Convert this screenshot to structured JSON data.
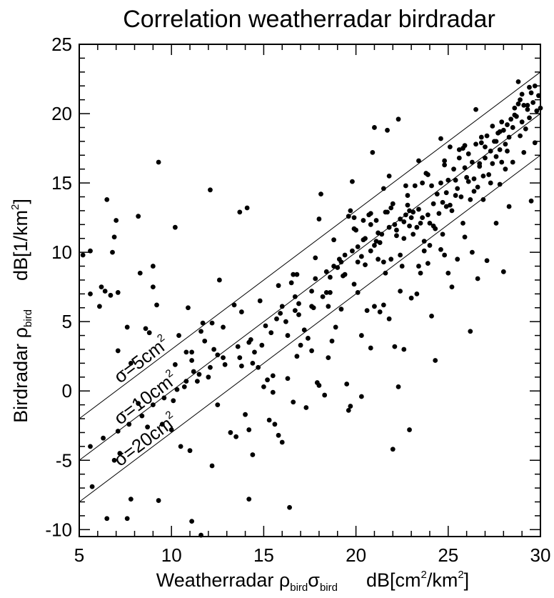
{
  "chart_data": {
    "type": "scatter",
    "title": "Correlation weatherradar birdradar",
    "xlabel": {
      "prefix": "Weatherradar ",
      "symbol1": "ρ",
      "sub1": "bird",
      "symbol2": "σ",
      "sub2": "bird",
      "unit_prefix": "dB[cm",
      "sup1": "2",
      "unit_mid": "/km",
      "sup2": "2",
      "unit_suffix": "]"
    },
    "ylabel": {
      "prefix": "Birdradar ",
      "symbol": "ρ",
      "sub": "bird",
      "unit_prefix": "dB[1/km",
      "sup": "2",
      "unit_suffix": "]"
    },
    "xlim": [
      5,
      30
    ],
    "ylim": [
      -10.5,
      25
    ],
    "xticks": [
      "5",
      "10",
      "15",
      "20",
      "25",
      "30"
    ],
    "yticks": [
      "-10",
      "-5",
      "0",
      "5",
      "10",
      "15",
      "20",
      "25"
    ],
    "grid": false,
    "reference_lines": [
      {
        "label_prefix": "σ=5cm",
        "label_sup": "2",
        "offset": -7.0
      },
      {
        "label_prefix": "σ=10cm",
        "label_sup": "2",
        "offset": -10.0
      },
      {
        "label_prefix": "σ=20cm",
        "label_sup": "2",
        "offset": -13.0
      }
    ],
    "points": [
      [
        5.2,
        9.8
      ],
      [
        5.6,
        10.1
      ],
      [
        5.6,
        7.0
      ],
      [
        6.1,
        6.1
      ],
      [
        6.2,
        7.5
      ],
      [
        6.5,
        13.8
      ],
      [
        6.4,
        7.2
      ],
      [
        6.7,
        6.9
      ],
      [
        6.8,
        10.0
      ],
      [
        6.9,
        11.1
      ],
      [
        7.0,
        12.3
      ],
      [
        7.1,
        7.1
      ],
      [
        7.1,
        2.9
      ],
      [
        7.6,
        4.6
      ],
      [
        7.8,
        2.0
      ],
      [
        8.2,
        12.6
      ],
      [
        8.3,
        8.5
      ],
      [
        8.6,
        4.5
      ],
      [
        8.8,
        4.2
      ],
      [
        9.0,
        9.0
      ],
      [
        9.0,
        7.5
      ],
      [
        9.2,
        6.2
      ],
      [
        9.3,
        16.5
      ],
      [
        10.2,
        11.8
      ],
      [
        10.2,
        1.9
      ],
      [
        10.4,
        4.0
      ],
      [
        10.9,
        6.0
      ],
      [
        11.1,
        2.8
      ],
      [
        11.1,
        2.2
      ],
      [
        11.2,
        1.4
      ],
      [
        11.6,
        4.3
      ],
      [
        11.7,
        4.9
      ],
      [
        12.1,
        14.5
      ],
      [
        12.2,
        4.9
      ],
      [
        12.3,
        3.0
      ],
      [
        12.5,
        2.6
      ],
      [
        12.6,
        8.0
      ],
      [
        13.4,
        6.2
      ],
      [
        13.7,
        12.9
      ],
      [
        14.1,
        13.2
      ],
      [
        13.8,
        1.8
      ],
      [
        14.2,
        3.5
      ],
      [
        14.4,
        2.0
      ],
      [
        14.7,
        1.7
      ],
      [
        14.9,
        3.3
      ],
      [
        15.0,
        0.3
      ],
      [
        15.2,
        0.8
      ],
      [
        15.5,
        1.1
      ],
      [
        15.5,
        -0.1
      ],
      [
        15.7,
        5.2
      ],
      [
        16.0,
        6.1
      ],
      [
        16.3,
        4.0
      ],
      [
        16.5,
        7.8
      ],
      [
        16.6,
        8.4
      ],
      [
        16.7,
        5.8
      ],
      [
        16.9,
        5.5
      ],
      [
        17.2,
        4.4
      ],
      [
        17.4,
        3.8
      ],
      [
        17.6,
        6.1
      ],
      [
        17.8,
        8.1
      ],
      [
        18.0,
        12.4
      ],
      [
        18.1,
        14.2
      ],
      [
        18.2,
        6.8
      ],
      [
        18.4,
        7.1
      ],
      [
        18.5,
        6.1
      ],
      [
        18.6,
        8.2
      ],
      [
        18.8,
        9.0
      ],
      [
        19.0,
        8.9
      ],
      [
        19.2,
        9.3
      ],
      [
        19.3,
        8.3
      ],
      [
        19.4,
        9.8
      ],
      [
        19.6,
        12.6
      ],
      [
        19.7,
        13.0
      ],
      [
        19.8,
        15.1
      ],
      [
        19.9,
        12.5
      ],
      [
        20.0,
        11.6
      ],
      [
        20.1,
        10.4
      ],
      [
        20.3,
        9.7
      ],
      [
        20.4,
        12.3
      ],
      [
        20.5,
        9.1
      ],
      [
        20.7,
        12.7
      ],
      [
        20.8,
        12.0
      ],
      [
        20.9,
        17.2
      ],
      [
        21.0,
        19.0
      ],
      [
        21.0,
        10.5
      ],
      [
        21.1,
        10.8
      ],
      [
        21.2,
        9.5
      ],
      [
        21.4,
        11.3
      ],
      [
        21.5,
        14.6
      ],
      [
        21.6,
        12.9
      ],
      [
        21.7,
        18.8
      ],
      [
        21.8,
        15.5
      ],
      [
        21.9,
        9.5
      ],
      [
        22.0,
        13.5
      ],
      [
        22.1,
        12.0
      ],
      [
        22.2,
        11.2
      ],
      [
        22.3,
        19.6
      ],
      [
        22.4,
        12.4
      ],
      [
        22.5,
        9.0
      ],
      [
        22.6,
        11.0
      ],
      [
        22.7,
        12.7
      ],
      [
        22.8,
        13.4
      ],
      [
        22.9,
        11.9
      ],
      [
        23.0,
        12.5
      ],
      [
        23.1,
        12.9
      ],
      [
        23.2,
        14.8
      ],
      [
        23.3,
        11.8
      ],
      [
        23.4,
        13.1
      ],
      [
        23.5,
        12.1
      ],
      [
        23.6,
        15.0
      ],
      [
        23.7,
        10.8
      ],
      [
        23.8,
        15.7
      ],
      [
        23.9,
        12.7
      ],
      [
        24.0,
        10.5
      ],
      [
        24.1,
        14.8
      ],
      [
        24.2,
        13.5
      ],
      [
        24.3,
        11.7
      ],
      [
        24.4,
        14.2
      ],
      [
        24.5,
        12.8
      ],
      [
        24.6,
        15.0
      ],
      [
        24.7,
        13.6
      ],
      [
        24.8,
        16.3
      ],
      [
        24.9,
        14.3
      ],
      [
        25.0,
        15.2
      ],
      [
        25.1,
        17.6
      ],
      [
        25.2,
        13.0
      ],
      [
        25.3,
        16.0
      ],
      [
        25.4,
        15.2
      ],
      [
        25.5,
        14.6
      ],
      [
        25.6,
        16.8
      ],
      [
        25.7,
        14.0
      ],
      [
        25.8,
        17.5
      ],
      [
        25.9,
        16.1
      ],
      [
        26.0,
        15.4
      ],
      [
        26.1,
        17.1
      ],
      [
        26.2,
        13.8
      ],
      [
        26.3,
        16.5
      ],
      [
        26.4,
        15.3
      ],
      [
        26.5,
        17.8
      ],
      [
        26.6,
        14.7
      ],
      [
        26.7,
        16.2
      ],
      [
        26.8,
        17.9
      ],
      [
        26.9,
        15.5
      ],
      [
        27.0,
        16.8
      ],
      [
        27.1,
        18.4
      ],
      [
        27.2,
        15.6
      ],
      [
        27.3,
        17.3
      ],
      [
        27.4,
        16.4
      ],
      [
        27.5,
        18.0
      ],
      [
        27.6,
        16.9
      ],
      [
        27.7,
        18.6
      ],
      [
        27.8,
        17.4
      ],
      [
        27.9,
        16.5
      ],
      [
        28.0,
        18.8
      ],
      [
        28.1,
        17.8
      ],
      [
        28.2,
        19.2
      ],
      [
        28.3,
        18.3
      ],
      [
        28.4,
        19.6
      ],
      [
        28.5,
        19.0
      ],
      [
        28.6,
        20.4
      ],
      [
        28.7,
        19.8
      ],
      [
        28.8,
        22.3
      ],
      [
        28.9,
        21.0
      ],
      [
        29.0,
        19.4
      ],
      [
        29.1,
        20.6
      ],
      [
        29.2,
        18.9
      ],
      [
        29.3,
        20.3
      ],
      [
        29.4,
        19.7
      ],
      [
        29.5,
        21.5
      ],
      [
        29.6,
        20.8
      ],
      [
        29.7,
        22.0
      ],
      [
        29.8,
        20.2
      ],
      [
        29.9,
        21.3
      ],
      [
        30.0,
        20.4
      ],
      [
        29.5,
        13.7
      ],
      [
        28.0,
        8.6
      ],
      [
        28.3,
        13.3
      ],
      [
        27.6,
        12.1
      ],
      [
        27.1,
        9.4
      ],
      [
        26.6,
        8.1
      ],
      [
        26.3,
        10.0
      ],
      [
        26.2,
        4.3
      ],
      [
        25.9,
        11.1
      ],
      [
        25.5,
        9.5
      ],
      [
        25.2,
        7.5
      ],
      [
        25.0,
        8.5
      ],
      [
        24.8,
        9.8
      ],
      [
        24.6,
        10.2
      ],
      [
        24.3,
        2.2
      ],
      [
        24.1,
        5.4
      ],
      [
        23.9,
        9.2
      ],
      [
        23.7,
        10.1
      ],
      [
        23.5,
        8.5
      ],
      [
        23.3,
        7.0
      ],
      [
        23.0,
        6.7
      ],
      [
        22.9,
        -2.8
      ],
      [
        22.6,
        3.0
      ],
      [
        22.4,
        7.2
      ],
      [
        22.3,
        0.3
      ],
      [
        22.1,
        3.2
      ],
      [
        22.0,
        -4.2
      ],
      [
        21.8,
        5.2
      ],
      [
        21.6,
        8.5
      ],
      [
        21.5,
        6.2
      ],
      [
        21.3,
        5.7
      ],
      [
        21.0,
        6.1
      ],
      [
        20.8,
        3.1
      ],
      [
        20.6,
        5.8
      ],
      [
        20.3,
        4.0
      ],
      [
        20.1,
        7.1
      ],
      [
        19.9,
        7.7
      ],
      [
        19.6,
        -1.4
      ],
      [
        19.5,
        0.5
      ],
      [
        19.2,
        5.9
      ],
      [
        18.9,
        4.6
      ],
      [
        18.7,
        3.6
      ],
      [
        18.5,
        2.4
      ],
      [
        18.3,
        -0.3
      ],
      [
        17.9,
        0.6
      ],
      [
        17.6,
        2.9
      ],
      [
        17.3,
        -1.2
      ],
      [
        17.0,
        3.3
      ],
      [
        16.8,
        2.5
      ],
      [
        16.6,
        -0.8
      ],
      [
        16.4,
        -8.4
      ],
      [
        16.3,
        0.9
      ],
      [
        16.0,
        -3.7
      ],
      [
        15.8,
        -3.2
      ],
      [
        15.6,
        -2.4
      ],
      [
        15.3,
        -2.1
      ],
      [
        14.4,
        -4.6
      ],
      [
        14.2,
        -2.8
      ],
      [
        14.0,
        -1.7
      ],
      [
        13.5,
        -3.3
      ],
      [
        13.2,
        -3.0
      ],
      [
        12.5,
        -1.0
      ],
      [
        12.2,
        -5.4
      ],
      [
        11.6,
        -10.4
      ],
      [
        11.0,
        -4.3
      ],
      [
        10.5,
        -4.0
      ],
      [
        10.0,
        -2.8
      ],
      [
        9.5,
        -2.4
      ],
      [
        9.3,
        -7.9
      ],
      [
        8.7,
        -2.6
      ],
      [
        8.2,
        -0.9
      ],
      [
        7.8,
        -7.8
      ],
      [
        7.6,
        -9.2
      ],
      [
        7.2,
        -4.5
      ],
      [
        6.9,
        -5.0
      ],
      [
        6.5,
        -9.2
      ],
      [
        5.7,
        -6.9
      ],
      [
        11.1,
        -9.4
      ],
      [
        14.2,
        -7.8
      ],
      [
        20.3,
        -0.4
      ],
      [
        19.7,
        -1.1
      ],
      [
        18.0,
        0.4
      ],
      [
        20.5,
        11.0
      ],
      [
        21.3,
        10.7
      ],
      [
        22.7,
        14.8
      ],
      [
        23.4,
        16.6
      ],
      [
        24.6,
        18.2
      ],
      [
        25.6,
        17.4
      ],
      [
        26.5,
        20.3
      ],
      [
        27.4,
        19.1
      ],
      [
        27.6,
        18.0
      ],
      [
        28.2,
        17.3
      ],
      [
        27.0,
        17.6
      ],
      [
        26.7,
        16.4
      ],
      [
        26.1,
        15.1
      ],
      [
        25.4,
        14.1
      ],
      [
        24.9,
        13.3
      ],
      [
        24.2,
        11.9
      ],
      [
        23.6,
        12.5
      ],
      [
        22.9,
        13.0
      ],
      [
        22.2,
        11.6
      ],
      [
        21.7,
        12.9
      ],
      [
        21.2,
        11.4
      ],
      [
        20.8,
        10.1
      ],
      [
        20.1,
        9.3
      ],
      [
        19.4,
        8.4
      ],
      [
        18.6,
        7.1
      ],
      [
        17.7,
        6.0
      ],
      [
        16.9,
        6.3
      ],
      [
        16.2,
        5.0
      ],
      [
        15.4,
        4.2
      ],
      [
        14.5,
        2.8
      ],
      [
        13.7,
        2.4
      ],
      [
        12.9,
        1.9
      ],
      [
        12.0,
        1.0
      ],
      [
        11.4,
        0.7
      ],
      [
        10.7,
        0.3
      ],
      [
        10.1,
        -0.7
      ],
      [
        21.5,
        9.3
      ],
      [
        22.4,
        9.8
      ],
      [
        23.4,
        9.0
      ],
      [
        24.7,
        11.3
      ],
      [
        25.8,
        12.1
      ],
      [
        26.9,
        13.8
      ],
      [
        27.8,
        14.9
      ],
      [
        28.5,
        16.5
      ],
      [
        29.1,
        17.2
      ],
      [
        29.7,
        17.9
      ],
      [
        28.9,
        18.4
      ],
      [
        28.1,
        16.0
      ],
      [
        27.3,
        15.0
      ],
      [
        26.4,
        14.4
      ],
      [
        25.1,
        13.4
      ],
      [
        24.0,
        12.1
      ],
      [
        23.1,
        11.3
      ],
      [
        22.6,
        12.2
      ],
      [
        21.8,
        11.8
      ],
      [
        21.1,
        12.3
      ],
      [
        20.4,
        10.9
      ],
      [
        19.8,
        10.1
      ],
      [
        19.1,
        9.5
      ],
      [
        18.4,
        8.6
      ],
      [
        17.6,
        7.2
      ],
      [
        16.7,
        6.8
      ],
      [
        15.9,
        5.6
      ],
      [
        15.1,
        4.7
      ],
      [
        14.3,
        3.7
      ],
      [
        13.6,
        3.2
      ],
      [
        12.8,
        2.4
      ],
      [
        12.1,
        1.7
      ],
      [
        11.5,
        1.2
      ],
      [
        10.8,
        0.7
      ],
      [
        10.3,
        0.1
      ],
      [
        9.6,
        -0.5
      ],
      [
        9.0,
        -1.0
      ],
      [
        8.4,
        -1.8
      ],
      [
        7.7,
        -2.4
      ],
      [
        7.1,
        -2.9
      ],
      [
        6.3,
        -3.4
      ],
      [
        5.6,
        -4.0
      ],
      [
        27.9,
        19.4
      ],
      [
        28.6,
        19.9
      ],
      [
        29.3,
        20.6
      ],
      [
        28.8,
        20.7
      ],
      [
        29.4,
        21.9
      ],
      [
        29.0,
        21.4
      ],
      [
        27.8,
        18.7
      ],
      [
        26.8,
        18.3
      ],
      [
        25.9,
        17.7
      ],
      [
        24.8,
        16.6
      ],
      [
        23.9,
        15.6
      ],
      [
        22.8,
        14.1
      ],
      [
        21.9,
        13.2
      ],
      [
        20.8,
        12.8
      ],
      [
        19.9,
        11.7
      ],
      [
        18.8,
        10.9
      ],
      [
        17.8,
        9.6
      ],
      [
        16.8,
        8.4
      ],
      [
        15.8,
        7.6
      ],
      [
        14.8,
        6.5
      ],
      [
        13.8,
        5.7
      ],
      [
        12.8,
        4.6
      ],
      [
        11.8,
        3.6
      ],
      [
        10.8,
        2.8
      ]
    ]
  }
}
